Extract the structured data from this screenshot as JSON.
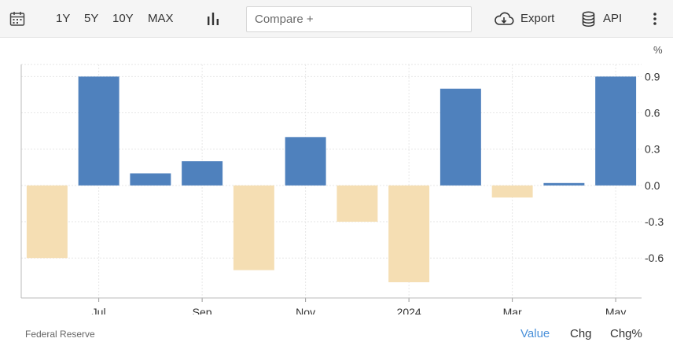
{
  "toolbar": {
    "calendar_icon": "calendar-icon",
    "ranges": [
      "1Y",
      "5Y",
      "10Y",
      "MAX"
    ],
    "chart_type_icon": "bar-chart-icon",
    "compare_placeholder": "Compare +",
    "export_label": "Export",
    "export_icon": "cloud-download-icon",
    "api_label": "API",
    "api_icon": "database-icon",
    "more_icon": "vertical-dots-icon"
  },
  "colors": {
    "positive": "#4f81bd",
    "negative": "#f5deb3",
    "active_tab": "#4a90d9"
  },
  "chart_data": {
    "type": "bar",
    "unit_label": "%",
    "categories": [
      "2023-06",
      "2023-07",
      "2023-08",
      "2023-09",
      "2023-10",
      "2023-11",
      "2023-12",
      "2024-01",
      "2024-02",
      "2024-03",
      "2024-04",
      "2024-05"
    ],
    "values": [
      -0.6,
      0.9,
      0.1,
      0.2,
      -0.7,
      0.4,
      -0.3,
      -0.8,
      0.8,
      -0.1,
      0.02,
      0.9
    ],
    "x_tick_labels": [
      {
        "category": "2023-07",
        "label": "Jul"
      },
      {
        "category": "2023-09",
        "label": "Sep"
      },
      {
        "category": "2023-11",
        "label": "Nov"
      },
      {
        "category": "2024-01",
        "label": "2024"
      },
      {
        "category": "2024-03",
        "label": "Mar"
      },
      {
        "category": "2024-05",
        "label": "May"
      }
    ],
    "y_ticks": [
      0.9,
      0.6,
      0.3,
      0.0,
      -0.3,
      -0.6
    ],
    "y_tick_labels": [
      "0.9",
      "0.6",
      "0.3",
      "0.0",
      "-0.3",
      "-0.6"
    ],
    "ylim": [
      -0.93,
      1.0
    ],
    "grid": true,
    "title": "",
    "xlabel": "",
    "ylabel": ""
  },
  "footer": {
    "source": "Federal Reserve",
    "tabs": [
      "Value",
      "Chg",
      "Chg%"
    ],
    "active_tab": 0
  }
}
